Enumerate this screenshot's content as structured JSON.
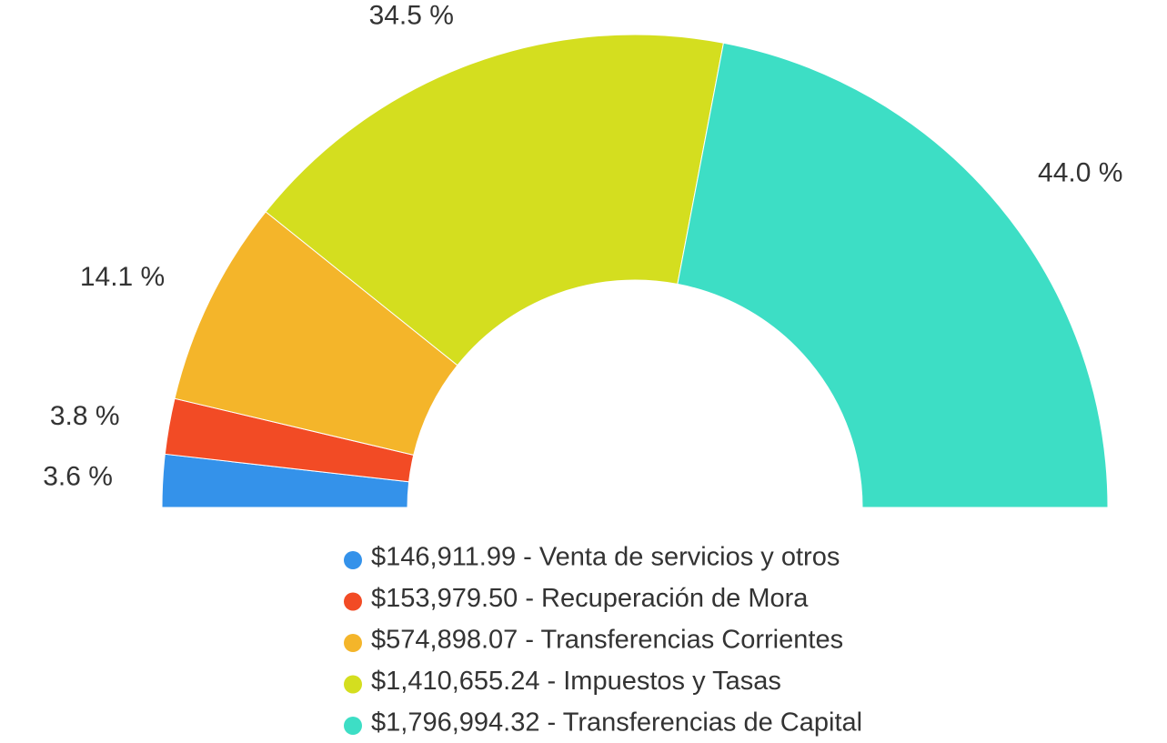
{
  "chart_data": {
    "type": "half-donut",
    "categories": [
      "$146,911.99 - Venta de servicios y otros",
      "$153,979.50 - Recuperación de Mora",
      "$574,898.07 - Transferencias Corrientes",
      "$1,410,655.24 - Impuestos y Tasas",
      "$1,796,994.32 - Transferencias de Capital"
    ],
    "values": [
      3.6,
      3.8,
      14.1,
      34.5,
      44.0
    ],
    "value_labels": [
      "3.6 %",
      "3.8 %",
      "14.1 %",
      "34.5 %",
      "44.0 %"
    ],
    "colors": [
      "#3492ea",
      "#f24b25",
      "#f4b52a",
      "#d4de1f",
      "#3ddec5"
    ]
  }
}
